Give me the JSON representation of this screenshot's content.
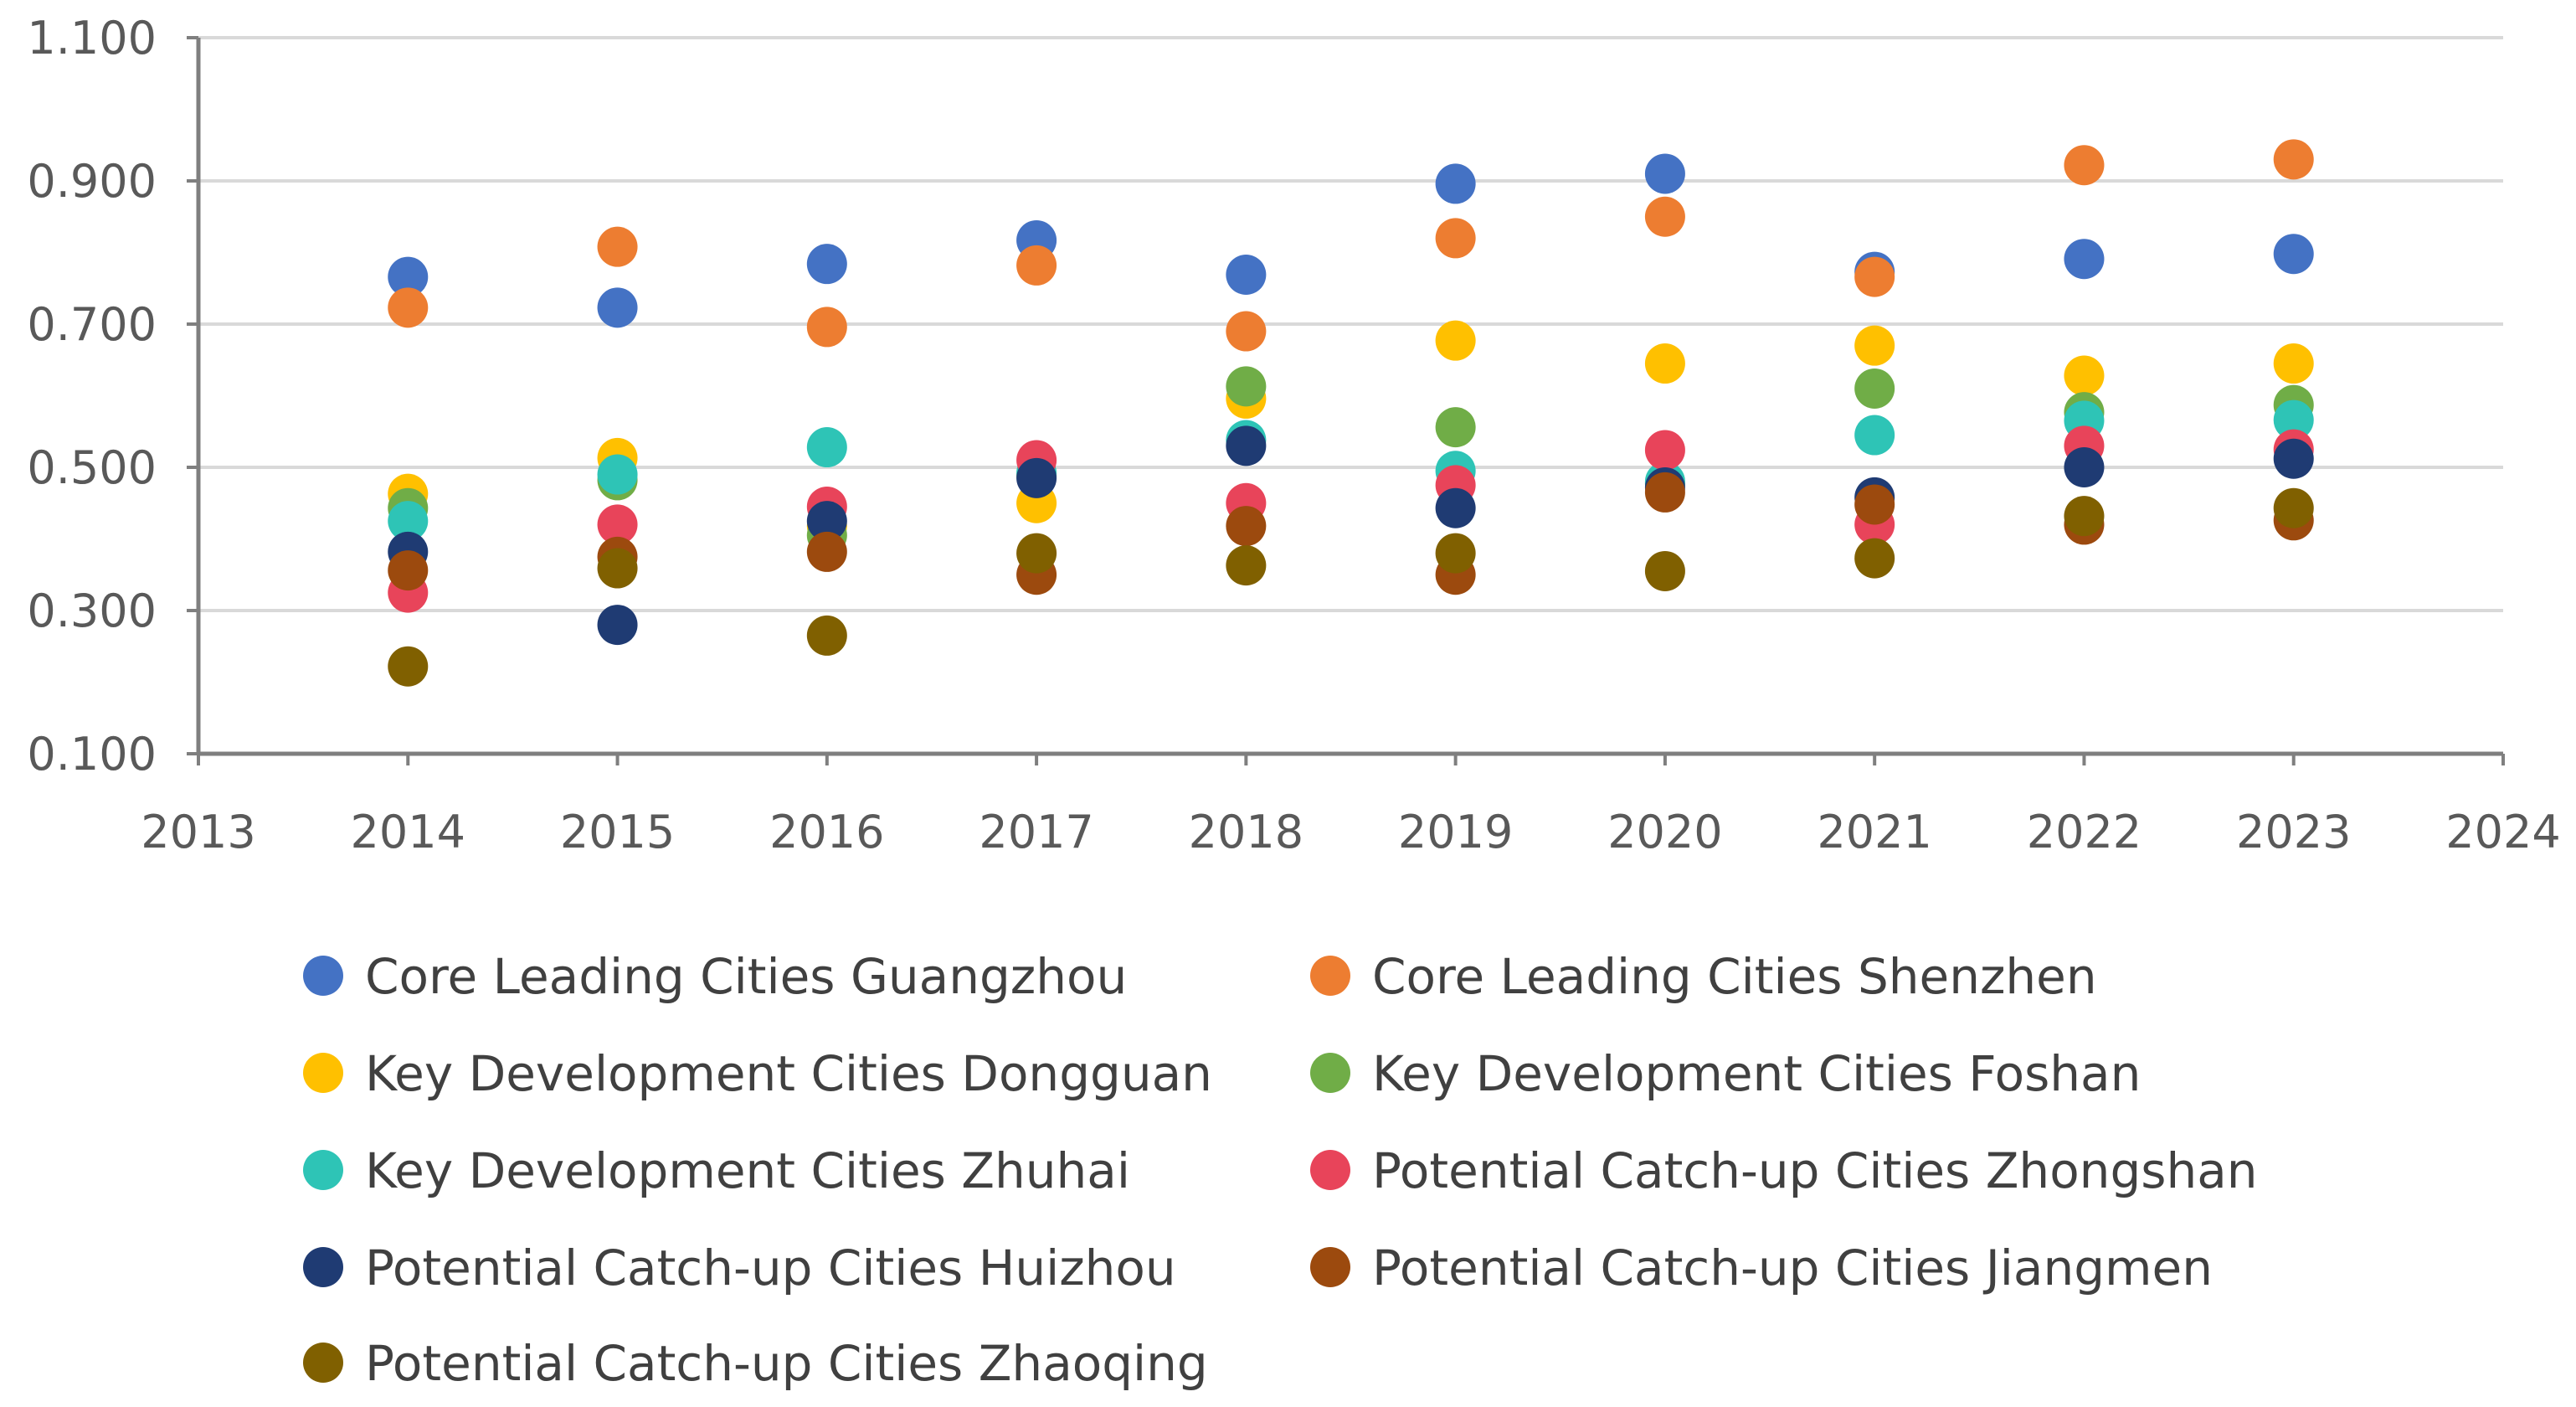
{
  "chart_data": {
    "type": "scatter",
    "title": "",
    "xlabel": "",
    "ylabel": "",
    "xlim": [
      2013,
      2024
    ],
    "ylim": [
      0.1,
      1.1
    ],
    "x_ticks": [
      "2013",
      "2014",
      "2015",
      "2016",
      "2017",
      "2018",
      "2019",
      "2020",
      "2021",
      "2022",
      "2023",
      "2024"
    ],
    "y_ticks": [
      "0.100",
      "0.300",
      "0.500",
      "0.700",
      "0.900",
      "1.100"
    ],
    "grid": true,
    "legend_position": "bottom",
    "x": [
      2014,
      2015,
      2016,
      2017,
      2018,
      2019,
      2020,
      2021,
      2022,
      2023
    ],
    "series": [
      {
        "name": "Core Leading Cities Guangzhou",
        "color": "#4472c4",
        "values": [
          0.766,
          0.723,
          0.784,
          0.817,
          0.769,
          0.896,
          0.91,
          0.773,
          0.791,
          0.798
        ]
      },
      {
        "name": "Core Leading Cities Shenzhen",
        "color": "#ed7d31",
        "values": [
          0.723,
          0.808,
          0.696,
          0.782,
          0.69,
          0.82,
          0.85,
          0.766,
          0.922,
          0.93
        ]
      },
      {
        "name": "Key Development Cities Dongguan",
        "color": "#ffc000",
        "values": [
          0.463,
          0.513,
          0.418,
          0.45,
          0.596,
          0.677,
          0.645,
          0.67,
          0.628,
          0.645
        ]
      },
      {
        "name": "Key Development Cities Foshan",
        "color": "#70ad47",
        "values": [
          0.443,
          0.482,
          0.405,
          0.488,
          0.613,
          0.556,
          0.477,
          0.61,
          0.577,
          0.587
        ]
      },
      {
        "name": "Key Development Cities Zhuhai",
        "color": "#2ec4b6",
        "values": [
          0.425,
          0.49,
          0.528,
          0.492,
          0.538,
          0.495,
          0.48,
          0.545,
          0.565,
          0.566
        ]
      },
      {
        "name": "Potential Catch-up Cities Zhongshan",
        "color": "#e8445a",
        "values": [
          0.325,
          0.42,
          0.445,
          0.51,
          0.45,
          0.475,
          0.524,
          0.42,
          0.53,
          0.525
        ]
      },
      {
        "name": "Potential Catch-up Cities Huizhou",
        "color": "#1f3b73",
        "values": [
          0.382,
          0.28,
          0.425,
          0.485,
          0.53,
          0.443,
          0.472,
          0.458,
          0.5,
          0.512
        ]
      },
      {
        "name": "Potential Catch-up Cities Jiangmen",
        "color": "#9c4a0e",
        "values": [
          0.356,
          0.375,
          0.382,
          0.35,
          0.418,
          0.35,
          0.465,
          0.448,
          0.42,
          0.426
        ]
      },
      {
        "name": "Potential Catch-up Cities Zhaoqing",
        "color": "#806000",
        "values": [
          0.222,
          0.359,
          0.265,
          0.38,
          0.363,
          0.38,
          0.355,
          0.373,
          0.432,
          0.443
        ]
      }
    ]
  }
}
